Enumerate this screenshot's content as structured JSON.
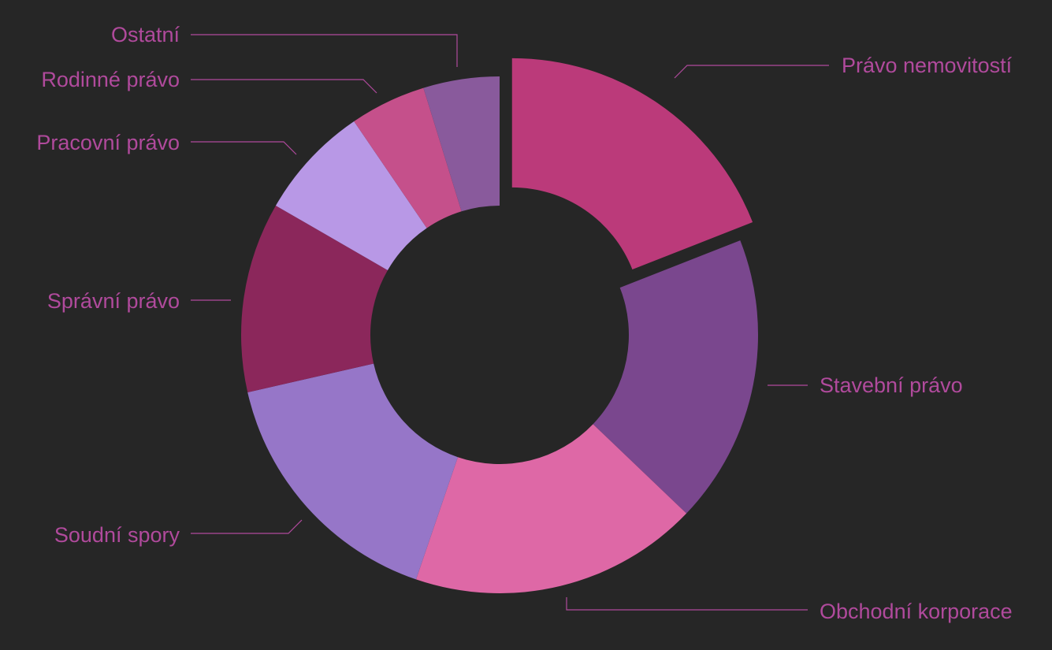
{
  "chart_data": {
    "type": "pie",
    "variant": "donut",
    "title": "",
    "legend": "none",
    "exploded_slice": "Právo nemovitostí",
    "label_color": "#b04a9c",
    "background": "#262626",
    "slices": [
      {
        "name": "Právo nemovitostí",
        "value": 20,
        "color": "#bb3a7a"
      },
      {
        "name": "Stavební právo",
        "value": 19,
        "color": "#7a478e"
      },
      {
        "name": "Obchodní korporace",
        "value": 19,
        "color": "#de68a6"
      },
      {
        "name": "Soudní spory",
        "value": 17,
        "color": "#9676c8"
      },
      {
        "name": "Správní právo",
        "value": 12.5,
        "color": "#8b275b"
      },
      {
        "name": "Pracovní právo",
        "value": 7.5,
        "color": "#b898e6"
      },
      {
        "name": "Rodinné právo",
        "value": 5,
        "color": "#c5508b"
      },
      {
        "name": "Ostatní",
        "value": 5,
        "color": "#895a9c"
      }
    ]
  }
}
